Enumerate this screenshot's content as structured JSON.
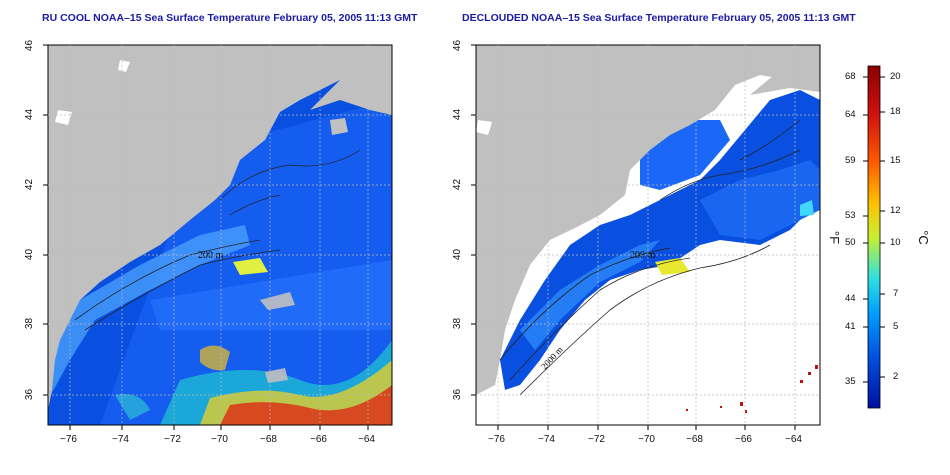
{
  "maps": [
    {
      "title": "RU COOL NOAA–15 Sea Surface Temperature February 05, 2005 11:13 GMT",
      "x_ticks": [
        "−76",
        "−74",
        "−72",
        "−70",
        "−68",
        "−66",
        "−64"
      ],
      "y_ticks": [
        "36",
        "38",
        "40",
        "42",
        "44",
        "46"
      ],
      "contours": [
        "200 m",
        "2000 m",
        "50 m",
        "200 m"
      ]
    },
    {
      "title": "DECLOUDED NOAA–15 Sea Surface Temperature February 05, 2005 11:13 GMT",
      "x_ticks": [
        "−76",
        "−74",
        "−72",
        "−70",
        "−68",
        "−66",
        "−64"
      ],
      "y_ticks": [
        "36",
        "38",
        "40",
        "42",
        "44",
        "46"
      ],
      "contours": [
        "200 m",
        "2000 m",
        "50 m",
        "100 m"
      ]
    }
  ],
  "colorbar": {
    "fahrenheit_ticks": [
      "68",
      "64",
      "59",
      "53",
      "50",
      "44",
      "41",
      "35"
    ],
    "celsius_ticks": [
      "20",
      "18",
      "15",
      "12",
      "10",
      "7",
      "5",
      "2"
    ],
    "fahrenheit_unit": "°F",
    "celsius_unit": "°C",
    "colors": [
      "#8b0000",
      "#d01010",
      "#ff5a00",
      "#ffc000",
      "#d8f020",
      "#40e0d0",
      "#00a0ff",
      "#0050e0",
      "#0010a0"
    ]
  },
  "colors": {
    "land": "#c0c0c0",
    "title": "#1a1aa6",
    "no_data": "#ffffff"
  }
}
